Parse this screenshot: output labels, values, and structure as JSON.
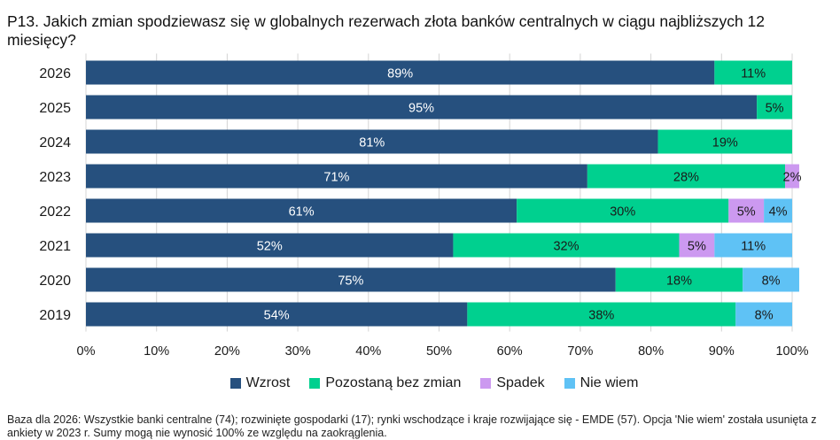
{
  "title": "P13. Jakich zmian spodziewasz się w globalnych rezerwach złota banków centralnych w ciągu najbliższych 12 miesięcy?",
  "footnote": "Baza dla 2026: Wszystkie banki centralne (74); rozwinięte gospodarki (17); rynki wschodzące i kraje rozwijające się - EMDE (57). Opcja 'Nie wiem' została usunięta z ankiety w 2023 r. Sumy mogą nie wynosić 100% ze względu na zaokrąglenia.",
  "chart_data": {
    "type": "bar",
    "orientation": "horizontal",
    "stacked": true,
    "categories": [
      "2026",
      "2025",
      "2024",
      "2023",
      "2022",
      "2021",
      "2020",
      "2019"
    ],
    "series": [
      {
        "name": "Wzrost",
        "color": "#26507e",
        "values": [
          89,
          95,
          81,
          71,
          61,
          52,
          75,
          54
        ],
        "labels": [
          "89%",
          "95%",
          "81%",
          "71%",
          "61%",
          "52%",
          "75%",
          "54%"
        ]
      },
      {
        "name": "Pozostaną bez zmian",
        "color": "#00d08f",
        "values": [
          11,
          5,
          19,
          28,
          30,
          32,
          18,
          38
        ],
        "labels": [
          "11%",
          "5%",
          "19%",
          "28%",
          "30%",
          "32%",
          "18%",
          "38%"
        ]
      },
      {
        "name": "Spadek",
        "color": "#cc99f0",
        "values": [
          0,
          0,
          0,
          2,
          5,
          5,
          0,
          0
        ],
        "labels": [
          "",
          "",
          "",
          "2%",
          "5%",
          "5%",
          "",
          ""
        ]
      },
      {
        "name": "Nie wiem",
        "color": "#5fc2f5",
        "values": [
          0,
          0,
          0,
          0,
          4,
          11,
          8,
          8
        ],
        "labels": [
          "",
          "",
          "",
          "",
          "4%",
          "11%",
          "8%",
          "8%"
        ]
      }
    ],
    "xlim": [
      0,
      100
    ],
    "xticks": [
      "0%",
      "10%",
      "20%",
      "30%",
      "40%",
      "50%",
      "60%",
      "70%",
      "80%",
      "90%",
      "100%"
    ],
    "grid": true,
    "legend_position": "bottom"
  }
}
